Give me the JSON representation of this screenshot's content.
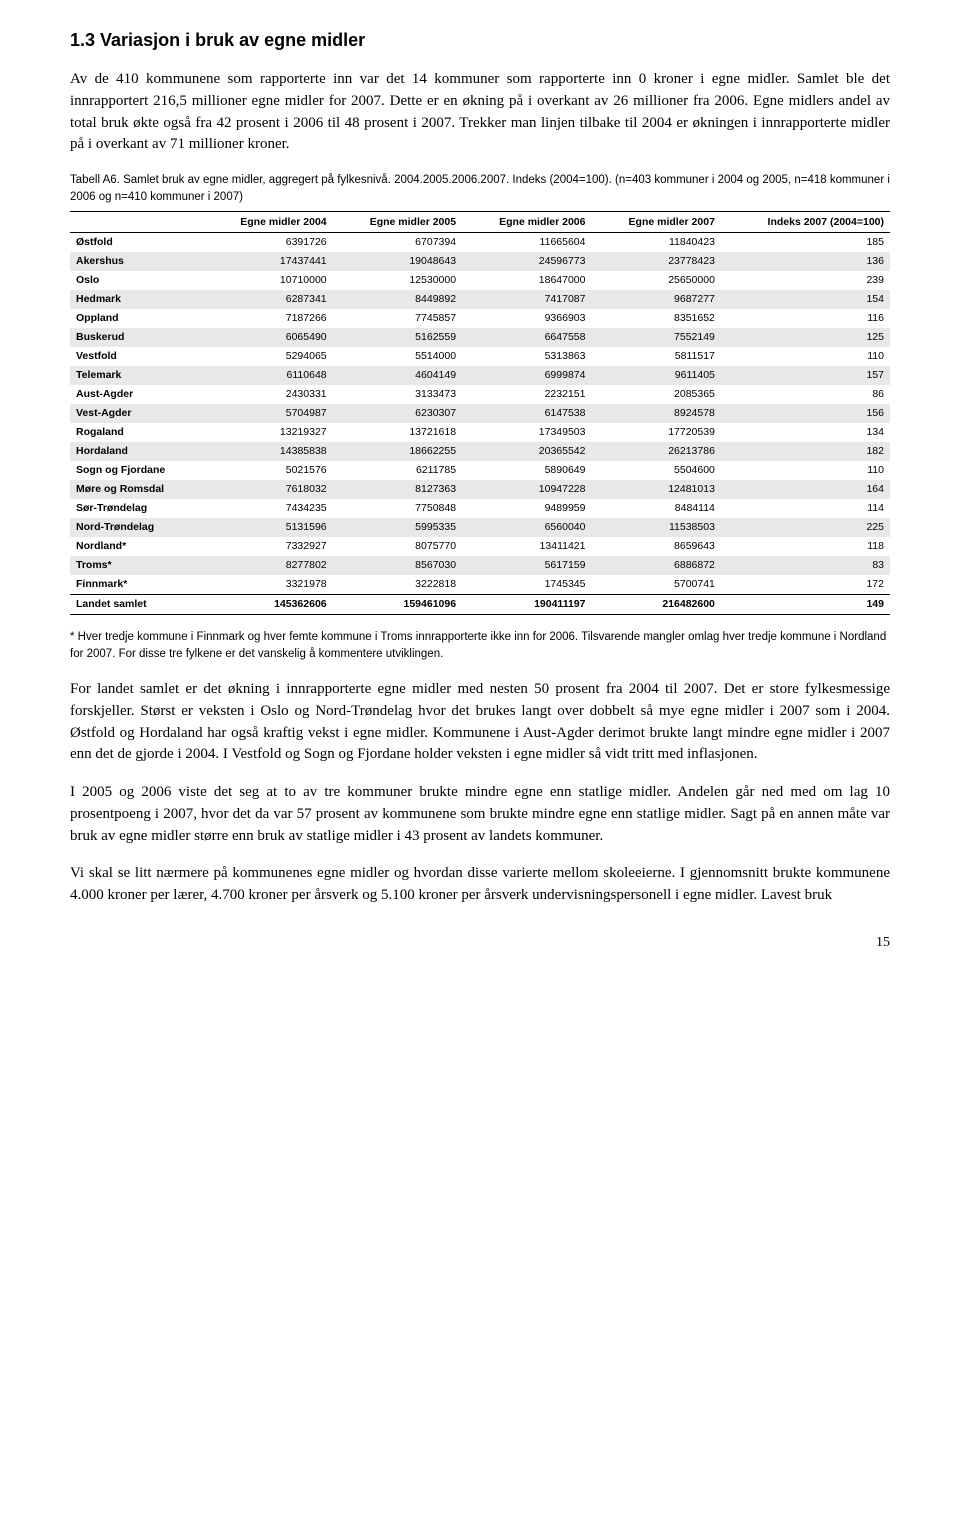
{
  "heading": "1.3 Variasjon i bruk av egne midler",
  "para1": "Av de 410 kommunene som rapporterte inn var det 14 kommuner som rapporterte inn 0 kroner i egne midler. Samlet ble det innrapportert 216,5 millioner egne midler for 2007. Dette er en økning på i overkant av 26 millioner fra 2006. Egne midlers andel av total bruk økte også fra 42 prosent i 2006 til 48 prosent i 2007. Trekker man linjen tilbake til 2004 er økningen i innrapporterte midler på i overkant av 71 millioner kroner.",
  "table": {
    "caption": "Tabell A6. Samlet bruk av egne midler, aggregert på fylkesnivå. 2004.2005.2006.2007. Indeks (2004=100). (n=403 kommuner i 2004 og 2005, n=418 kommuner i 2006 og n=410 kommuner i 2007)",
    "columns": [
      "",
      "Egne midler 2004",
      "Egne midler 2005",
      "Egne midler 2006",
      "Egne midler 2007",
      "Indeks 2007 (2004=100)"
    ],
    "rows": [
      [
        "Østfold",
        "6391726",
        "6707394",
        "11665604",
        "11840423",
        "185"
      ],
      [
        "Akershus",
        "17437441",
        "19048643",
        "24596773",
        "23778423",
        "136"
      ],
      [
        "Oslo",
        "10710000",
        "12530000",
        "18647000",
        "25650000",
        "239"
      ],
      [
        "Hedmark",
        "6287341",
        "8449892",
        "7417087",
        "9687277",
        "154"
      ],
      [
        "Oppland",
        "7187266",
        "7745857",
        "9366903",
        "8351652",
        "116"
      ],
      [
        "Buskerud",
        "6065490",
        "5162559",
        "6647558",
        "7552149",
        "125"
      ],
      [
        "Vestfold",
        "5294065",
        "5514000",
        "5313863",
        "5811517",
        "110"
      ],
      [
        "Telemark",
        "6110648",
        "4604149",
        "6999874",
        "9611405",
        "157"
      ],
      [
        "Aust-Agder",
        "2430331",
        "3133473",
        "2232151",
        "2085365",
        "86"
      ],
      [
        "Vest-Agder",
        "5704987",
        "6230307",
        "6147538",
        "8924578",
        "156"
      ],
      [
        "Rogaland",
        "13219327",
        "13721618",
        "17349503",
        "17720539",
        "134"
      ],
      [
        "Hordaland",
        "14385838",
        "18662255",
        "20365542",
        "26213786",
        "182"
      ],
      [
        "Sogn og Fjordane",
        "5021576",
        "6211785",
        "5890649",
        "5504600",
        "110"
      ],
      [
        "Møre og Romsdal",
        "7618032",
        "8127363",
        "10947228",
        "12481013",
        "164"
      ],
      [
        "Sør-Trøndelag",
        "7434235",
        "7750848",
        "9489959",
        "8484114",
        "114"
      ],
      [
        "Nord-Trøndelag",
        "5131596",
        "5995335",
        "6560040",
        "11538503",
        "225"
      ],
      [
        "Nordland*",
        "7332927",
        "8075770",
        "13411421",
        "8659643",
        "118"
      ],
      [
        "Troms*",
        "8277802",
        "8567030",
        "5617159",
        "6886872",
        "83"
      ],
      [
        "Finnmark*",
        "3321978",
        "3222818",
        "1745345",
        "5700741",
        "172"
      ]
    ],
    "totals": [
      "Landet samlet",
      "145362606",
      "159461096",
      "190411197",
      "216482600",
      "149"
    ],
    "alt_row_bg": "#e8e8e8",
    "border_color": "#000000",
    "font_size_pt": 10.5
  },
  "footnote": "* Hver tredje kommune i Finnmark og hver femte kommune i Troms innrapporterte ikke inn for 2006. Tilsvarende mangler omlag hver tredje kommune i Nordland for 2007. For disse tre fylkene er det vanskelig å kommentere utviklingen.",
  "para2": "For landet samlet er det økning i innrapporterte egne midler med nesten 50 prosent fra 2004 til 2007. Det er store fylkesmessige forskjeller. Størst er veksten i Oslo og Nord-Trøndelag hvor det brukes langt over dobbelt så mye egne midler i 2007 som i 2004. Østfold og Hordaland har også kraftig vekst i egne midler. Kommunene i Aust-Agder derimot brukte langt mindre egne midler i 2007 enn det de gjorde i 2004. I Vestfold og Sogn og Fjordane holder veksten i egne midler så vidt tritt med inflasjonen.",
  "para3": "I 2005 og 2006 viste det seg at to av tre kommuner brukte mindre egne enn statlige midler. Andelen går ned med om lag 10 prosentpoeng i 2007, hvor det da var 57 prosent av kommunene som brukte mindre egne enn statlige midler. Sagt på en annen måte var bruk av egne midler større enn bruk av statlige midler i 43 prosent av landets kommuner.",
  "para4": "Vi skal se litt nærmere på kommunenes egne midler og hvordan disse varierte mellom skoleeierne. I gjennomsnitt brukte kommunene 4.000 kroner per lærer, 4.700 kroner per årsverk og 5.100 kroner per årsverk undervisningspersonell i egne midler. Lavest bruk",
  "page_number": "15"
}
